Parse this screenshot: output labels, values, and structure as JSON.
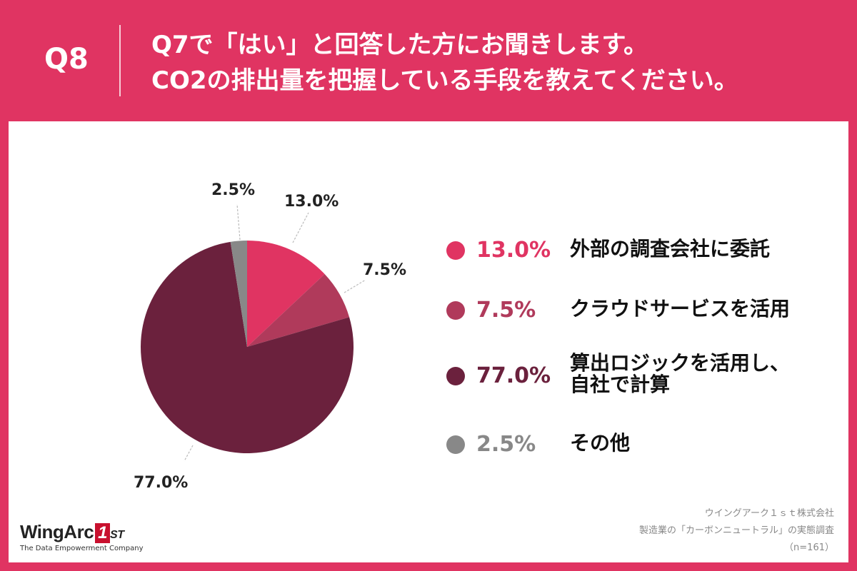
{
  "header": {
    "q_label": "Q8",
    "question_line1": "Q7で「はい」と回答した方にお聞きします。",
    "question_line2": "CO2の排出量を把握している手段を教えてください。"
  },
  "colors": {
    "background": "#e03462",
    "panel": "#ffffff",
    "series": [
      "#e03462",
      "#b03a5b",
      "#6b213d",
      "#888888"
    ]
  },
  "chart_data": {
    "type": "pie",
    "categories": [
      "外部の調査会社に委託",
      "クラウドサービスを活用",
      "算出ロジックを活用し、自社で計算",
      "その他"
    ],
    "values": [
      13.0,
      7.5,
      77.0,
      2.5
    ],
    "labels": [
      "13.0%",
      "7.5%",
      "77.0%",
      "2.5%"
    ],
    "start_angle": "12 o'clock",
    "direction": "clockwise"
  },
  "legend": [
    {
      "pct": "13.0%",
      "line1": "外部の調査会社に委託",
      "line2": ""
    },
    {
      "pct": "7.5%",
      "line1": "クラウドサービスを活用",
      "line2": ""
    },
    {
      "pct": "77.0%",
      "line1": "算出ロジックを活用し、",
      "line2": "自社で計算"
    },
    {
      "pct": "2.5%",
      "line1": "その他",
      "line2": ""
    }
  ],
  "logo": {
    "name": "WingArc",
    "box": "1",
    "suffix": "ST",
    "tagline": "The Data Empowerment Company"
  },
  "source": {
    "line1": "ウイングアーク１ｓｔ株式会社",
    "line2": "製造業の「カーボンニュートラル」の実態調査",
    "line3": "（n=161）"
  }
}
